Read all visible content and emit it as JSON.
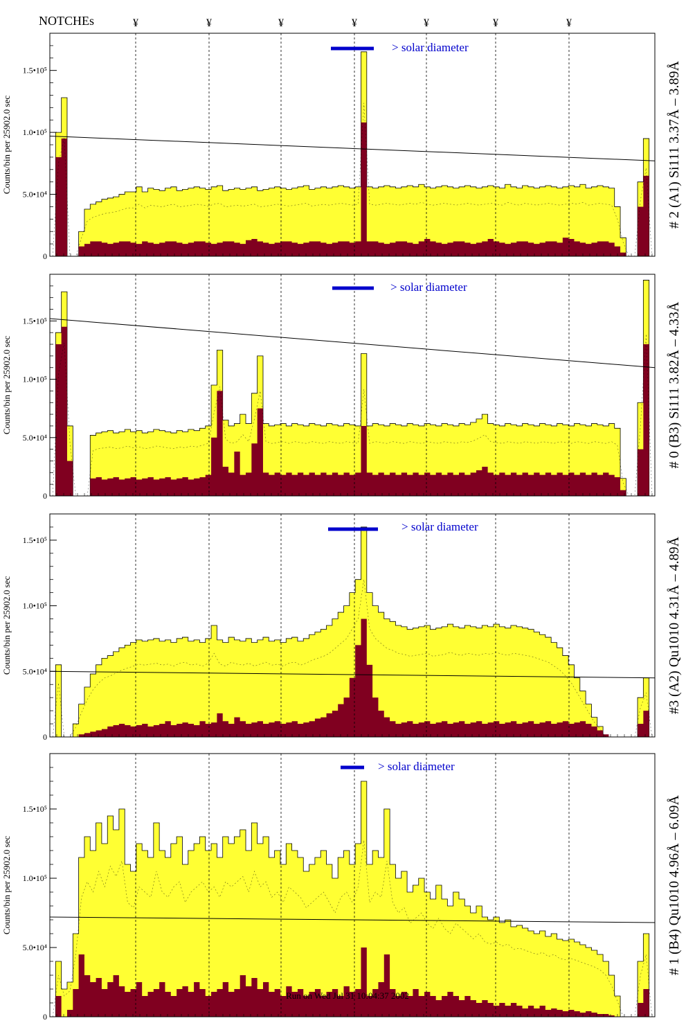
{
  "header": {
    "notches_label": "NOTCHEs",
    "notch_marker": "¥"
  },
  "footer": {
    "run_text": "Run on Wed Jul 31 10:04:37 2002"
  },
  "colors": {
    "fill": "#ffff33",
    "dark": "#800020",
    "accent": "#0000cc",
    "frame": "#000000"
  },
  "chart_data": [
    {
      "type": "area",
      "title": "# 2 (A1) Si111  3.37Å – 3.89Å",
      "ylabel": "Counts/bin per  25902.0 sec",
      "yticks": [
        "0",
        "5.0•10⁴",
        "1.0•10⁵",
        "1.5•10⁵"
      ],
      "ylim": [
        0,
        180000
      ],
      "annotation": "> solar diameter",
      "series": [
        {
          "values": [
            0,
            100000,
            128000,
            0,
            0,
            20000,
            38000,
            42000,
            44000,
            46000,
            47000,
            48000,
            50000,
            52000,
            52000,
            56000,
            52000,
            55000,
            54000,
            53000,
            55000,
            56000,
            53000,
            54000,
            55000,
            56000,
            55000,
            54000,
            56000,
            57000,
            53000,
            54000,
            55000,
            54000,
            55000,
            56000,
            53000,
            54000,
            55000,
            56000,
            55000,
            54000,
            55000,
            56000,
            57000,
            54000,
            55000,
            56000,
            55000,
            56000,
            57000,
            56000,
            55000,
            56000,
            165000,
            56000,
            55000,
            56000,
            57000,
            56000,
            55000,
            56000,
            57000,
            56000,
            58000,
            56000,
            55000,
            56000,
            57000,
            56000,
            55000,
            56000,
            57000,
            56000,
            55000,
            56000,
            57000,
            56000,
            55000,
            58000,
            56000,
            55000,
            57000,
            56000,
            55000,
            56000,
            57000,
            56000,
            55000,
            56000,
            57000,
            56000,
            58000,
            55000,
            56000,
            57000,
            56000,
            55000,
            40000,
            15000,
            0,
            0,
            60000,
            95000,
            0
          ]
        },
        {
          "values": [
            0,
            80000,
            95000,
            0,
            0,
            8000,
            10000,
            12000,
            12000,
            11000,
            10000,
            11000,
            12000,
            12000,
            11000,
            10000,
            12000,
            11000,
            10000,
            11000,
            12000,
            12000,
            11000,
            10000,
            11000,
            12000,
            12000,
            11000,
            10000,
            11000,
            12000,
            12000,
            11000,
            10000,
            13000,
            14000,
            12000,
            11000,
            10000,
            11000,
            12000,
            12000,
            11000,
            10000,
            11000,
            12000,
            12000,
            11000,
            10000,
            11000,
            12000,
            12000,
            11000,
            12000,
            108000,
            12000,
            12000,
            11000,
            10000,
            11000,
            12000,
            12000,
            11000,
            10000,
            12000,
            14000,
            12000,
            11000,
            10000,
            11000,
            12000,
            12000,
            11000,
            10000,
            11000,
            12000,
            14000,
            12000,
            11000,
            10000,
            11000,
            12000,
            12000,
            11000,
            10000,
            11000,
            12000,
            12000,
            11000,
            15000,
            14000,
            12000,
            11000,
            10000,
            11000,
            12000,
            12000,
            11000,
            8000,
            3000,
            0,
            0,
            40000,
            65000,
            0
          ]
        }
      ],
      "trend": [
        97000,
        77000
      ]
    },
    {
      "type": "area",
      "title": "# 0 (B3) Si111  3.82Å – 4.33Å",
      "ylabel": "Counts/bin per  25902.0 sec",
      "yticks": [
        "0",
        "5.0•10⁴",
        "1.0•10⁵",
        "1.5•10⁵"
      ],
      "ylim": [
        0,
        190000
      ],
      "annotation": "> solar diameter",
      "series": [
        {
          "values": [
            0,
            140000,
            175000,
            60000,
            0,
            0,
            0,
            52000,
            54000,
            55000,
            56000,
            54000,
            55000,
            57000,
            55000,
            56000,
            54000,
            55000,
            57000,
            56000,
            55000,
            54000,
            56000,
            55000,
            57000,
            56000,
            58000,
            60000,
            95000,
            125000,
            65000,
            60000,
            62000,
            70000,
            62000,
            88000,
            120000,
            62000,
            60000,
            61000,
            62000,
            60000,
            62000,
            61000,
            60000,
            62000,
            61000,
            60000,
            62000,
            61000,
            60000,
            62000,
            61000,
            60000,
            122000,
            60000,
            62000,
            61000,
            60000,
            62000,
            61000,
            60000,
            62000,
            61000,
            60000,
            62000,
            61000,
            60000,
            62000,
            61000,
            60000,
            62000,
            61000,
            63000,
            66000,
            70000,
            62000,
            61000,
            60000,
            62000,
            61000,
            60000,
            62000,
            61000,
            60000,
            62000,
            61000,
            60000,
            62000,
            61000,
            60000,
            62000,
            61000,
            60000,
            62000,
            61000,
            60000,
            62000,
            58000,
            15000,
            0,
            0,
            80000,
            185000,
            0
          ]
        },
        {
          "values": [
            0,
            130000,
            145000,
            30000,
            0,
            0,
            0,
            15000,
            16000,
            14000,
            15000,
            16000,
            14000,
            15000,
            16000,
            14000,
            15000,
            16000,
            14000,
            15000,
            16000,
            14000,
            15000,
            16000,
            14000,
            15000,
            16000,
            18000,
            50000,
            90000,
            25000,
            20000,
            38000,
            18000,
            20000,
            45000,
            75000,
            20000,
            18000,
            20000,
            18000,
            20000,
            18000,
            20000,
            18000,
            20000,
            18000,
            20000,
            18000,
            20000,
            18000,
            20000,
            18000,
            20000,
            60000,
            20000,
            18000,
            20000,
            18000,
            20000,
            18000,
            20000,
            18000,
            20000,
            18000,
            20000,
            18000,
            20000,
            18000,
            20000,
            18000,
            20000,
            18000,
            20000,
            22000,
            25000,
            20000,
            18000,
            20000,
            18000,
            20000,
            18000,
            20000,
            18000,
            20000,
            18000,
            20000,
            18000,
            20000,
            18000,
            20000,
            18000,
            20000,
            18000,
            20000,
            18000,
            20000,
            18000,
            16000,
            5000,
            0,
            0,
            40000,
            130000,
            0
          ]
        }
      ],
      "trend": [
        152000,
        110000
      ]
    },
    {
      "type": "area",
      "title": "#3 (A2) Qu1010  4.31Å – 4.89Å",
      "ylabel": "Counts/bin per  25902.0 sec",
      "yticks": [
        "0",
        "5.0•10⁴",
        "1.0•10⁵",
        "1.5•10⁵"
      ],
      "ylim": [
        0,
        170000
      ],
      "annotation": "> solar diameter",
      "series": [
        {
          "values": [
            0,
            55000,
            0,
            0,
            10000,
            25000,
            38000,
            48000,
            55000,
            60000,
            62000,
            65000,
            68000,
            70000,
            72000,
            74000,
            73000,
            74000,
            75000,
            73000,
            74000,
            72000,
            75000,
            76000,
            73000,
            74000,
            72000,
            75000,
            85000,
            74000,
            72000,
            76000,
            74000,
            73000,
            75000,
            72000,
            74000,
            76000,
            73000,
            74000,
            72000,
            75000,
            76000,
            73000,
            75000,
            78000,
            80000,
            82000,
            85000,
            90000,
            95000,
            100000,
            110000,
            120000,
            160000,
            110000,
            100000,
            95000,
            90000,
            88000,
            85000,
            84000,
            82000,
            83000,
            84000,
            85000,
            82000,
            83000,
            84000,
            86000,
            84000,
            83000,
            85000,
            84000,
            83000,
            85000,
            84000,
            86000,
            84000,
            83000,
            85000,
            84000,
            83000,
            82000,
            80000,
            78000,
            76000,
            72000,
            68000,
            62000,
            55000,
            45000,
            35000,
            25000,
            15000,
            8000,
            0,
            0,
            0,
            0,
            0,
            0,
            30000,
            45000,
            0
          ]
        },
        {
          "values": [
            0,
            0,
            0,
            0,
            0,
            2000,
            3000,
            4000,
            5000,
            6000,
            8000,
            9000,
            10000,
            9000,
            8000,
            9000,
            10000,
            8000,
            9000,
            10000,
            12000,
            9000,
            10000,
            11000,
            10000,
            9000,
            12000,
            10000,
            11000,
            18000,
            12000,
            10000,
            15000,
            12000,
            10000,
            11000,
            12000,
            10000,
            11000,
            12000,
            10000,
            11000,
            12000,
            10000,
            11000,
            12000,
            14000,
            15000,
            18000,
            20000,
            25000,
            30000,
            45000,
            70000,
            90000,
            55000,
            30000,
            20000,
            15000,
            12000,
            10000,
            11000,
            12000,
            10000,
            11000,
            12000,
            10000,
            11000,
            12000,
            10000,
            11000,
            12000,
            10000,
            11000,
            12000,
            10000,
            11000,
            12000,
            10000,
            11000,
            12000,
            10000,
            11000,
            12000,
            10000,
            11000,
            12000,
            10000,
            11000,
            12000,
            10000,
            11000,
            12000,
            10000,
            8000,
            5000,
            2000,
            0,
            0,
            0,
            0,
            0,
            10000,
            20000,
            0
          ]
        }
      ],
      "trend": [
        50000,
        45000
      ]
    },
    {
      "type": "area",
      "title": "# 1 (B4) Qu1010 4.96Å – 6.09Å",
      "ylabel": "Counts/bin per  25902.0 sec",
      "yticks": [
        "0",
        "5.0•10⁴",
        "1.0•10⁵",
        "1.5•10⁵"
      ],
      "ylim": [
        0,
        190000
      ],
      "annotation": "> solar diameter",
      "series": [
        {
          "values": [
            0,
            40000,
            20000,
            25000,
            60000,
            115000,
            130000,
            120000,
            140000,
            125000,
            145000,
            135000,
            150000,
            110000,
            105000,
            125000,
            120000,
            115000,
            140000,
            120000,
            115000,
            125000,
            130000,
            110000,
            120000,
            125000,
            130000,
            120000,
            125000,
            115000,
            130000,
            125000,
            130000,
            135000,
            120000,
            140000,
            125000,
            130000,
            115000,
            120000,
            110000,
            125000,
            120000,
            115000,
            105000,
            110000,
            115000,
            120000,
            110000,
            100000,
            115000,
            120000,
            110000,
            125000,
            170000,
            110000,
            120000,
            115000,
            150000,
            110000,
            100000,
            105000,
            90000,
            95000,
            100000,
            90000,
            85000,
            95000,
            85000,
            80000,
            90000,
            85000,
            80000,
            75000,
            80000,
            72000,
            70000,
            72000,
            68000,
            70000,
            65000,
            66000,
            64000,
            62000,
            60000,
            62000,
            58000,
            60000,
            56000,
            55000,
            56000,
            54000,
            52000,
            50000,
            48000,
            45000,
            40000,
            30000,
            15000,
            0,
            0,
            0,
            40000,
            60000,
            0
          ]
        },
        {
          "values": [
            0,
            15000,
            0,
            5000,
            20000,
            45000,
            30000,
            25000,
            28000,
            20000,
            25000,
            30000,
            22000,
            18000,
            20000,
            25000,
            15000,
            18000,
            20000,
            25000,
            18000,
            15000,
            20000,
            22000,
            18000,
            25000,
            20000,
            15000,
            18000,
            20000,
            25000,
            18000,
            20000,
            30000,
            22000,
            28000,
            20000,
            25000,
            18000,
            20000,
            15000,
            22000,
            18000,
            20000,
            15000,
            18000,
            20000,
            15000,
            18000,
            20000,
            15000,
            22000,
            18000,
            20000,
            50000,
            15000,
            20000,
            25000,
            45000,
            20000,
            15000,
            18000,
            15000,
            20000,
            15000,
            18000,
            15000,
            12000,
            15000,
            18000,
            15000,
            12000,
            15000,
            12000,
            10000,
            12000,
            10000,
            8000,
            10000,
            8000,
            10000,
            8000,
            6000,
            8000,
            6000,
            8000,
            5000,
            6000,
            5000,
            4000,
            5000,
            4000,
            3000,
            4000,
            3000,
            2000,
            2000,
            1000,
            0,
            0,
            0,
            0,
            10000,
            20000,
            0
          ]
        }
      ],
      "trend": [
        72000,
        68000
      ]
    }
  ]
}
